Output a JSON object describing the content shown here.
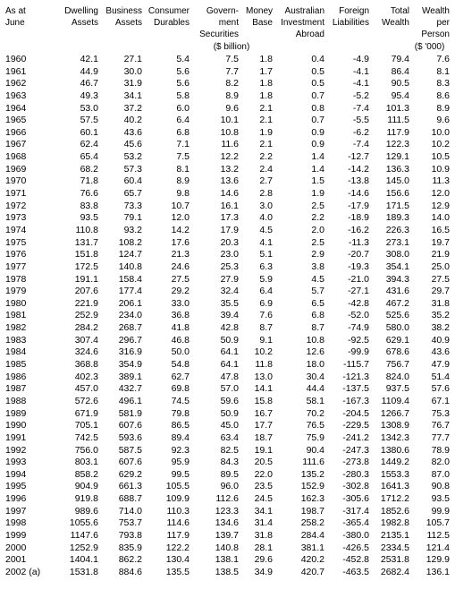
{
  "table": {
    "columns": [
      {
        "l1": "As at",
        "l2": "June",
        "align": "left"
      },
      {
        "l1": "Dwelling",
        "l2": "Assets"
      },
      {
        "l1": "Business",
        "l2": "Assets"
      },
      {
        "l1": "Consumer",
        "l2": "Durables"
      },
      {
        "l1": "Govern-",
        "l2": "ment",
        "l3": "Securities"
      },
      {
        "l1": "Money",
        "l2": "Base"
      },
      {
        "l1": "Australian",
        "l2": "Investment",
        "l3": "Abroad"
      },
      {
        "l1": "Foreign",
        "l2": "Liabilities"
      },
      {
        "l1": "Total",
        "l2": "Wealth"
      },
      {
        "l1": "Wealth",
        "l2": "per",
        "l3": "Person"
      }
    ],
    "unit_left": "($ billion)",
    "unit_right": "($ '000)",
    "rows": [
      [
        "1960",
        "42.1",
        "27.1",
        "5.4",
        "7.5",
        "1.8",
        "0.4",
        "-4.9",
        "79.4",
        "7.6"
      ],
      [
        "1961",
        "44.9",
        "30.0",
        "5.6",
        "7.7",
        "1.7",
        "0.5",
        "-4.1",
        "86.4",
        "8.1"
      ],
      [
        "1962",
        "46.7",
        "31.9",
        "5.6",
        "8.2",
        "1.8",
        "0.5",
        "-4.1",
        "90.5",
        "8.3"
      ],
      [
        "1963",
        "49.3",
        "34.1",
        "5.8",
        "8.9",
        "1.8",
        "0.7",
        "-5.2",
        "95.4",
        "8.6"
      ],
      [
        "1964",
        "53.0",
        "37.2",
        "6.0",
        "9.6",
        "2.1",
        "0.8",
        "-7.4",
        "101.3",
        "8.9"
      ],
      [
        "1965",
        "57.5",
        "40.2",
        "6.4",
        "10.1",
        "2.1",
        "0.7",
        "-5.5",
        "111.5",
        "9.6"
      ],
      [
        "1966",
        "60.1",
        "43.6",
        "6.8",
        "10.8",
        "1.9",
        "0.9",
        "-6.2",
        "117.9",
        "10.0"
      ],
      [
        "1967",
        "62.4",
        "45.6",
        "7.1",
        "11.6",
        "2.1",
        "0.9",
        "-7.4",
        "122.3",
        "10.2"
      ],
      [
        "1968",
        "65.4",
        "53.2",
        "7.5",
        "12.2",
        "2.2",
        "1.4",
        "-12.7",
        "129.1",
        "10.5"
      ],
      [
        "1969",
        "68.2",
        "57.3",
        "8.1",
        "13.2",
        "2.4",
        "1.4",
        "-14.2",
        "136.3",
        "10.9"
      ],
      [
        "1970",
        "71.8",
        "60.4",
        "8.9",
        "13.6",
        "2.7",
        "1.5",
        "-13.8",
        "145.0",
        "11.3"
      ],
      [
        "1971",
        "76.6",
        "65.7",
        "9.8",
        "14.6",
        "2.8",
        "1.9",
        "-14.6",
        "156.6",
        "12.0"
      ],
      [
        "1972",
        "83.8",
        "73.3",
        "10.7",
        "16.1",
        "3.0",
        "2.5",
        "-17.9",
        "171.5",
        "12.9"
      ],
      [
        "1973",
        "93.5",
        "79.1",
        "12.0",
        "17.3",
        "4.0",
        "2.2",
        "-18.9",
        "189.3",
        "14.0"
      ],
      [
        "1974",
        "110.8",
        "93.2",
        "14.2",
        "17.9",
        "4.5",
        "2.0",
        "-16.2",
        "226.3",
        "16.5"
      ],
      [
        "1975",
        "131.7",
        "108.2",
        "17.6",
        "20.3",
        "4.1",
        "2.5",
        "-11.3",
        "273.1",
        "19.7"
      ],
      [
        "1976",
        "151.8",
        "124.7",
        "21.3",
        "23.0",
        "5.1",
        "2.9",
        "-20.7",
        "308.0",
        "21.9"
      ],
      [
        "1977",
        "172.5",
        "140.8",
        "24.6",
        "25.3",
        "6.3",
        "3.8",
        "-19.3",
        "354.1",
        "25.0"
      ],
      [
        "1978",
        "191.1",
        "158.4",
        "27.5",
        "27.9",
        "5.9",
        "4.5",
        "-21.0",
        "394.3",
        "27.5"
      ],
      [
        "1979",
        "207.6",
        "177.4",
        "29.2",
        "32.4",
        "6.4",
        "5.7",
        "-27.1",
        "431.6",
        "29.7"
      ],
      [
        "1980",
        "221.9",
        "206.1",
        "33.0",
        "35.5",
        "6.9",
        "6.5",
        "-42.8",
        "467.2",
        "31.8"
      ],
      [
        "1981",
        "252.9",
        "234.0",
        "36.8",
        "39.4",
        "7.6",
        "6.8",
        "-52.0",
        "525.6",
        "35.2"
      ],
      [
        "1982",
        "284.2",
        "268.7",
        "41.8",
        "42.8",
        "8.7",
        "8.7",
        "-74.9",
        "580.0",
        "38.2"
      ],
      [
        "1983",
        "307.4",
        "296.7",
        "46.8",
        "50.9",
        "9.1",
        "10.8",
        "-92.5",
        "629.1",
        "40.9"
      ],
      [
        "1984",
        "324.6",
        "316.9",
        "50.0",
        "64.1",
        "10.2",
        "12.6",
        "-99.9",
        "678.6",
        "43.6"
      ],
      [
        "1985",
        "368.8",
        "354.9",
        "54.8",
        "64.1",
        "11.8",
        "18.0",
        "-115.7",
        "756.7",
        "47.9"
      ],
      [
        "1986",
        "402.3",
        "389.1",
        "62.7",
        "47.8",
        "13.0",
        "30.4",
        "-121.3",
        "824.0",
        "51.4"
      ],
      [
        "1987",
        "457.0",
        "432.7",
        "69.8",
        "57.0",
        "14.1",
        "44.4",
        "-137.5",
        "937.5",
        "57.6"
      ],
      [
        "1988",
        "572.6",
        "496.1",
        "74.5",
        "59.6",
        "15.8",
        "58.1",
        "-167.3",
        "1109.4",
        "67.1"
      ],
      [
        "1989",
        "671.9",
        "581.9",
        "79.8",
        "50.9",
        "16.7",
        "70.2",
        "-204.5",
        "1266.7",
        "75.3"
      ],
      [
        "1990",
        "705.1",
        "607.6",
        "86.5",
        "45.0",
        "17.7",
        "76.5",
        "-229.5",
        "1308.9",
        "76.7"
      ],
      [
        "1991",
        "742.5",
        "593.6",
        "89.4",
        "63.4",
        "18.7",
        "75.9",
        "-241.2",
        "1342.3",
        "77.7"
      ],
      [
        "1992",
        "756.0",
        "587.5",
        "92.3",
        "82.5",
        "19.1",
        "90.4",
        "-247.3",
        "1380.6",
        "78.9"
      ],
      [
        "1993",
        "803.1",
        "607.6",
        "95.9",
        "84.3",
        "20.5",
        "111.6",
        "-273.8",
        "1449.2",
        "82.0"
      ],
      [
        "1994",
        "858.2",
        "629.2",
        "99.5",
        "89.5",
        "22.0",
        "135.2",
        "-280.3",
        "1553.3",
        "87.0"
      ],
      [
        "1995",
        "904.9",
        "661.3",
        "105.5",
        "96.0",
        "23.5",
        "152.9",
        "-302.8",
        "1641.3",
        "90.8"
      ],
      [
        "1996",
        "919.8",
        "688.7",
        "109.9",
        "112.6",
        "24.5",
        "162.3",
        "-305.6",
        "1712.2",
        "93.5"
      ],
      [
        "1997",
        "989.6",
        "714.0",
        "110.3",
        "123.3",
        "34.1",
        "198.7",
        "-317.4",
        "1852.6",
        "99.9"
      ],
      [
        "1998",
        "1055.6",
        "753.7",
        "114.6",
        "134.6",
        "31.4",
        "258.2",
        "-365.4",
        "1982.8",
        "105.7"
      ],
      [
        "1999",
        "1147.6",
        "793.8",
        "117.9",
        "139.7",
        "31.8",
        "284.4",
        "-380.0",
        "2135.1",
        "112.5"
      ],
      [
        "2000",
        "1252.9",
        "835.9",
        "122.2",
        "140.8",
        "28.1",
        "381.1",
        "-426.5",
        "2334.5",
        "121.4"
      ],
      [
        "2001",
        "1404.1",
        "862.2",
        "130.4",
        "138.1",
        "29.6",
        "420.2",
        "-452.8",
        "2531.8",
        "129.9"
      ],
      [
        "2002  (a)",
        "1531.8",
        "884.6",
        "135.5",
        "138.5",
        "34.9",
        "420.7",
        "-463.5",
        "2682.4",
        "136.1"
      ]
    ]
  }
}
